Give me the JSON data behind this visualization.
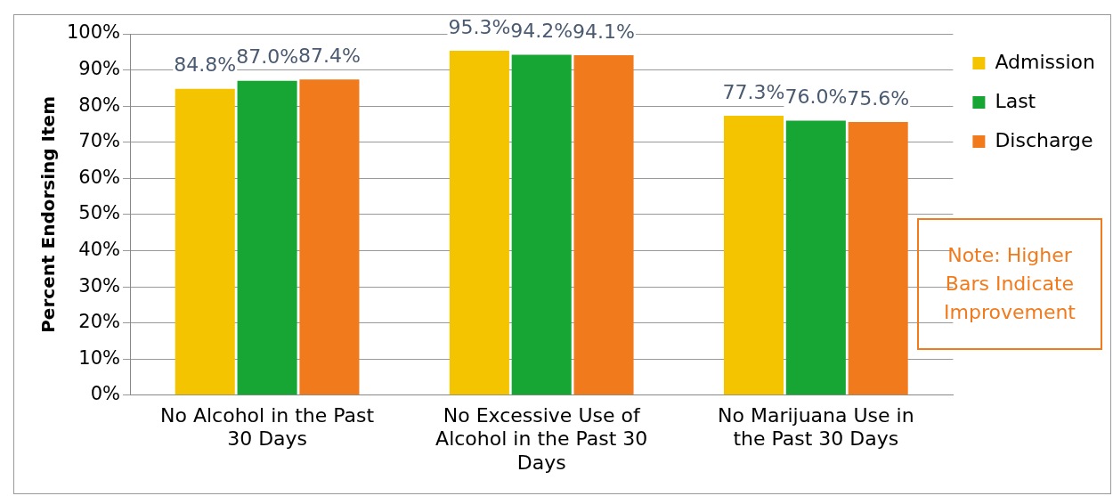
{
  "chart_data": {
    "type": "bar",
    "ylabel": "Percent Endorsing Item",
    "categories": [
      "No Alcohol in the Past 30 Days",
      "No Excessive Use of Alcohol in the Past 30 Days",
      "No Marijuana Use in the Past 30 Days"
    ],
    "series": [
      {
        "name": "Admission",
        "color": "#f5c400",
        "values": [
          84.8,
          95.3,
          77.3
        ],
        "value_labels": [
          "84.8%",
          "95.3%",
          "77.3%"
        ]
      },
      {
        "name": "Last",
        "color": "#17a633",
        "values": [
          87.0,
          94.2,
          76.0
        ],
        "value_labels": [
          "87.0%",
          "94.2%",
          "76.0%"
        ]
      },
      {
        "name": "Discharge",
        "color": "#f07a1c",
        "values": [
          87.4,
          94.1,
          75.6
        ],
        "value_labels": [
          "87.4%",
          "94.1%",
          "75.6%"
        ]
      }
    ],
    "ylim": [
      0,
      100
    ],
    "yticks": [
      {
        "value": 0,
        "label": "0%"
      },
      {
        "value": 10,
        "label": "10%"
      },
      {
        "value": 20,
        "label": "20%"
      },
      {
        "value": 30,
        "label": "30%"
      },
      {
        "value": 40,
        "label": "40%"
      },
      {
        "value": 50,
        "label": "50%"
      },
      {
        "value": 60,
        "label": "60%"
      },
      {
        "value": 70,
        "label": "70%"
      },
      {
        "value": 80,
        "label": "80%"
      },
      {
        "value": 90,
        "label": "90%"
      },
      {
        "value": 100,
        "label": "100%"
      }
    ],
    "grid": "y",
    "legend": "right",
    "annotations": [
      "Note: Higher Bars Indicate Improvement"
    ]
  }
}
